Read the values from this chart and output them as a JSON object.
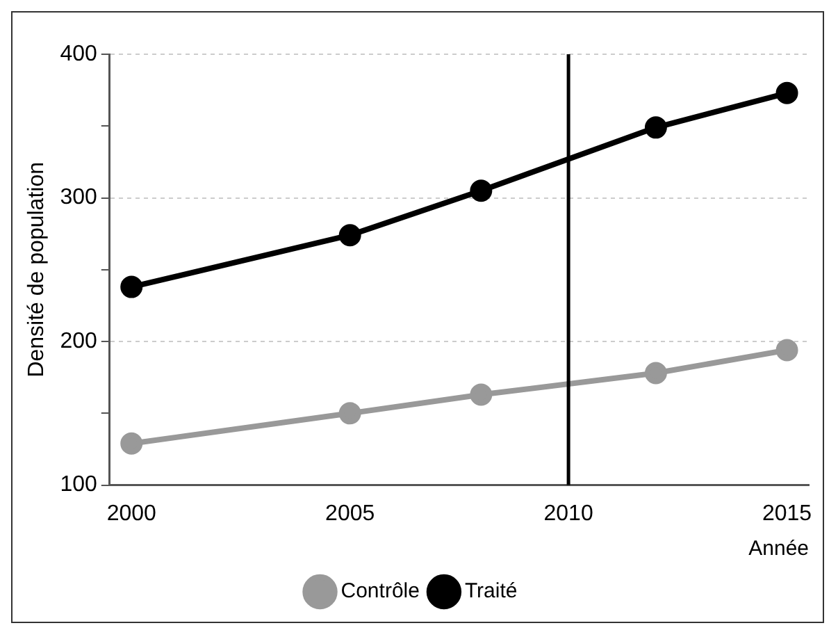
{
  "chart_data": {
    "type": "line",
    "xlabel": "Année",
    "ylabel": "Densité de population",
    "xlim": [
      1999.5,
      2015.5
    ],
    "xticks": [
      2000,
      2005,
      2010,
      2015
    ],
    "ylim": [
      100,
      400
    ],
    "yticks": [
      100,
      {
        "value": 150,
        "label": null
      },
      200,
      {
        "value": 250,
        "label": null
      },
      300,
      {
        "value": 350,
        "label": null
      },
      400
    ],
    "series": [
      {
        "name": "Contrôle",
        "color": "#999999",
        "x": [
          2000,
          2005,
          2008,
          2012,
          2015
        ],
        "values": [
          129,
          150,
          163,
          178,
          194
        ]
      },
      {
        "name": "Traité",
        "color": "#000000",
        "x": [
          2000,
          2005,
          2008,
          2012,
          2015
        ],
        "values": [
          238,
          274,
          305,
          349,
          373
        ]
      }
    ],
    "ref_lines": [
      {
        "axis": "x",
        "value": 2010,
        "color": "#000000"
      }
    ],
    "grid": "y",
    "legend": "bottom",
    "marker": "circle",
    "line_style": "solid"
  }
}
